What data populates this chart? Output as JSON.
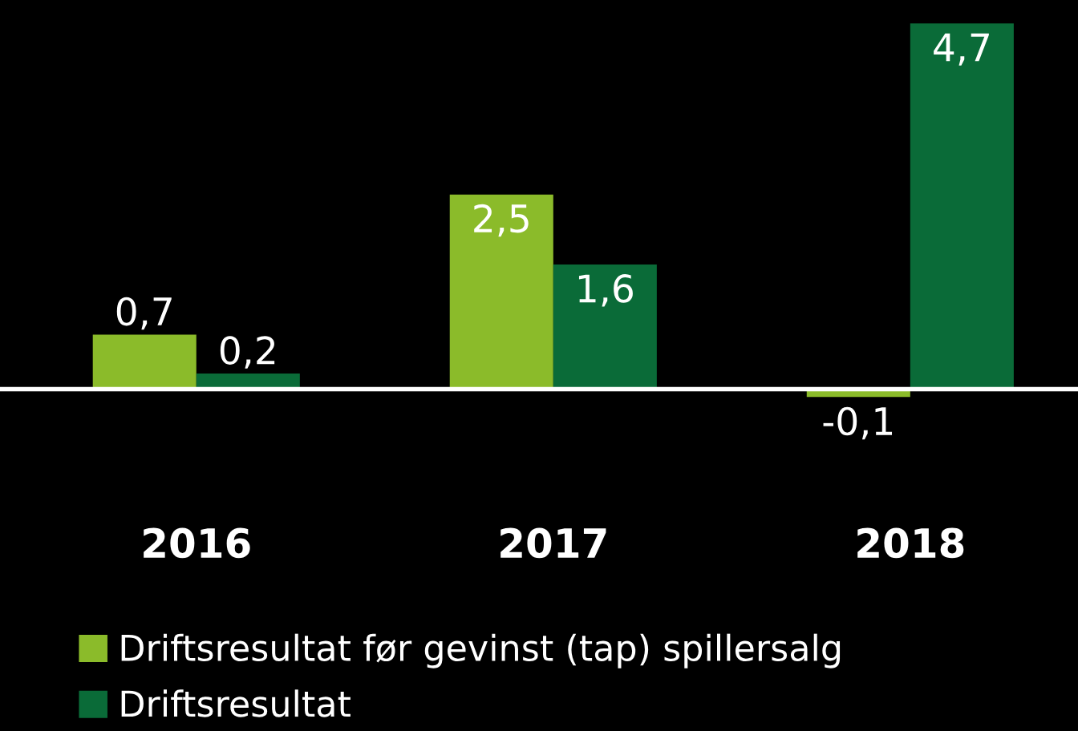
{
  "chart_data": {
    "type": "bar",
    "categories": [
      "2016",
      "2017",
      "2018"
    ],
    "series": [
      {
        "name": "Driftsresultat før gevinst (tap) spillersalg",
        "color": "#8bbb2a",
        "values": [
          0.7,
          2.5,
          -0.1
        ],
        "value_labels": [
          "0,7",
          "2,5",
          "-0,1"
        ]
      },
      {
        "name": "Driftsresultat",
        "color": "#0a6b38",
        "values": [
          0.2,
          1.6,
          4.7
        ],
        "value_labels": [
          "0,2",
          "1,6",
          "4,7"
        ]
      }
    ],
    "legend": "bottom",
    "grid": false
  }
}
